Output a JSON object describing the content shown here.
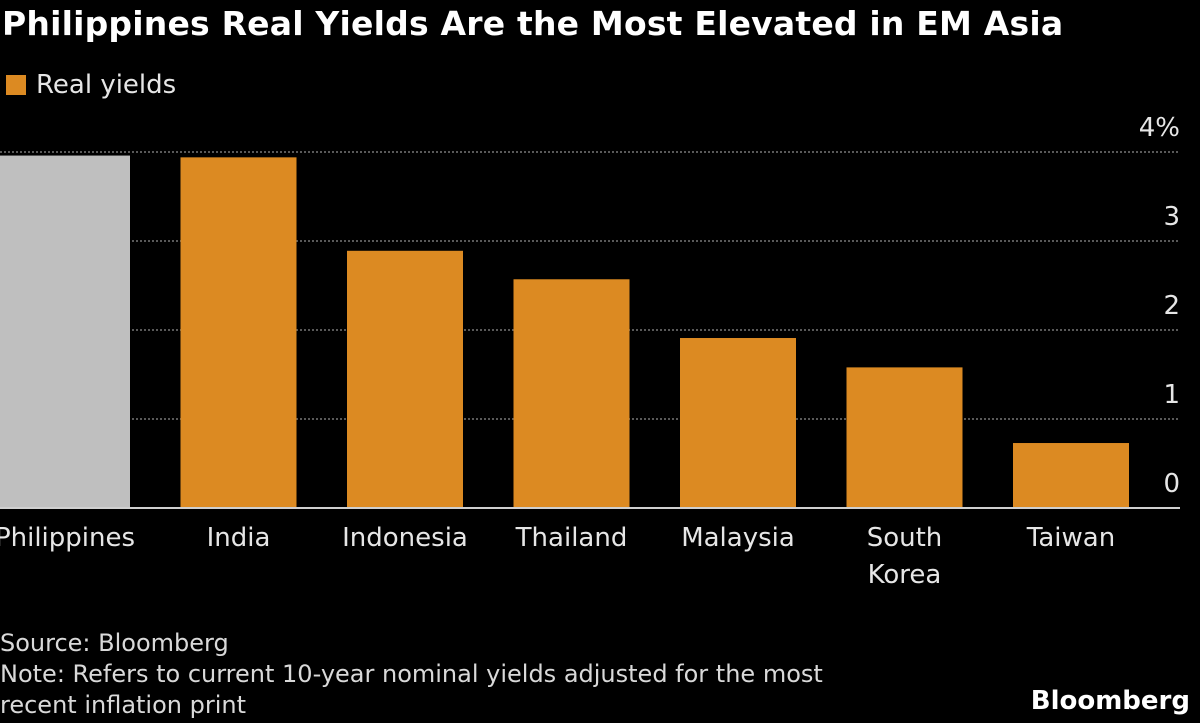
{
  "chart_data": {
    "type": "bar",
    "title": "Philippines Real Yields Are the Most Elevated in EM Asia",
    "legend": [
      {
        "name": "Real yields",
        "color": "#dc8a22"
      }
    ],
    "categories": [
      "Philippines",
      "India",
      "Indonesia",
      "Thailand",
      "Malaysia",
      "South Korea",
      "Taiwan"
    ],
    "category_lines": [
      [
        "Philippines"
      ],
      [
        "India"
      ],
      [
        "Indonesia"
      ],
      [
        "Thailand"
      ],
      [
        "Malaysia"
      ],
      [
        "South",
        "Korea"
      ],
      [
        "Taiwan"
      ]
    ],
    "series": [
      {
        "name": "Real yields",
        "values": [
          3.96,
          3.94,
          2.89,
          2.57,
          1.91,
          1.58,
          0.73
        ]
      }
    ],
    "highlight_index": 0,
    "highlight_color": "#bfbfbf",
    "bar_color": "#dc8a22",
    "ylim": [
      0,
      4
    ],
    "yticks": [
      "0",
      "1",
      "2",
      "3",
      "4%"
    ],
    "ytick_values": [
      0,
      1,
      2,
      3,
      4
    ],
    "grid": true,
    "xlabel": "",
    "ylabel": ""
  },
  "footer": {
    "source": "Source: Bloomberg",
    "note_line1": "Note: Refers to current 10-year nominal yields adjusted for the most",
    "note_line2": "recent inflation print",
    "logo": "Bloomberg"
  }
}
